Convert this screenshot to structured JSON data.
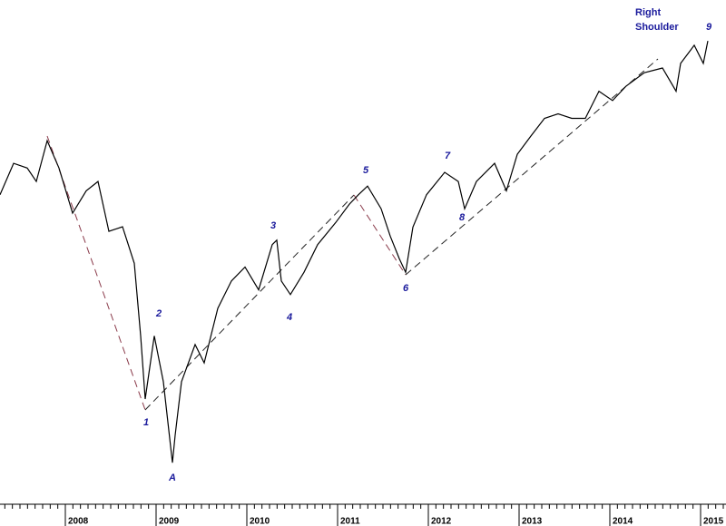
{
  "chart_data": {
    "type": "line",
    "x": [
      2007.28,
      2007.43,
      2007.58,
      2007.68,
      2007.8,
      2007.93,
      2008.08,
      2008.23,
      2008.36,
      2008.48,
      2008.63,
      2008.76,
      2008.83,
      2008.88,
      2008.98,
      2009.08,
      2009.18,
      2009.21,
      2009.28,
      2009.43,
      2009.53,
      2009.68,
      2009.83,
      2009.98,
      2010.13,
      2010.28,
      2010.33,
      2010.38,
      2010.48,
      2010.63,
      2010.78,
      2010.98,
      2011.13,
      2011.23,
      2011.33,
      2011.48,
      2011.58,
      2011.68,
      2011.75,
      2011.83,
      2011.98,
      2012.18,
      2012.33,
      2012.4,
      2012.53,
      2012.73,
      2012.86,
      2012.98,
      2013.13,
      2013.28,
      2013.43,
      2013.58,
      2013.73,
      2013.88,
      2014.03,
      2014.18,
      2014.38,
      2014.58,
      2014.73,
      2014.78,
      2014.93,
      2015.03,
      2015.08
    ],
    "series": [
      {
        "color": "#000000",
        "values": [
          1359,
          1475,
          1457,
          1407,
          1565,
          1457,
          1295,
          1373,
          1407,
          1235,
          1250,
          1136,
          940,
          797,
          940,
          834,
          675,
          725,
          834,
          919,
          876,
          1010,
          1085,
          1125,
          1060,
          1193,
          1207,
          1085,
          1047,
          1110,
          1193,
          1264,
          1326,
          1359,
          1390,
          1310,
          1220,
          1150,
          1110,
          1249,
          1359,
          1441,
          1407,
          1310,
          1407,
          1475,
          1373,
          1510,
          1584,
          1659,
          1679,
          1659,
          1659,
          1781,
          1738,
          1805,
          1869,
          1892,
          1781,
          1915,
          2008,
          1915,
          2031
        ]
      }
    ],
    "xlim": [
      2007.28,
      2015.28
    ],
    "xticks": [
      2008,
      2009,
      2010,
      2011,
      2012,
      2013,
      2014,
      2015
    ],
    "ylim": [
      607,
      2260
    ],
    "log_scale": true,
    "annotations": [
      "Right",
      "Shoulder",
      "9",
      "7",
      "5",
      "3",
      "8",
      "2",
      "4",
      "6",
      "1",
      "A"
    ]
  }
}
